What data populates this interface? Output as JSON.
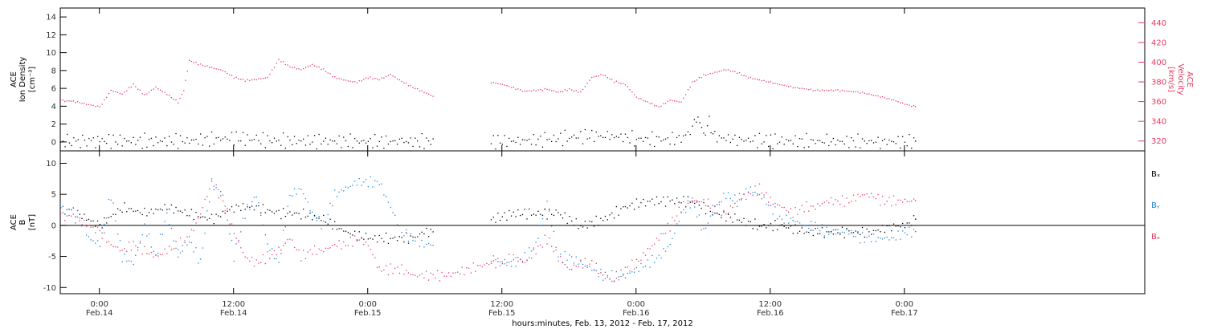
{
  "colors": {
    "black": "#000000",
    "pink": "#e8395f",
    "blue": "#1a86e0"
  },
  "time_axis": {
    "xlabel": "hours:minutes, Feb. 13, 2012 - Feb. 17, 2012",
    "range_hours": [
      -3.5,
      93.5
    ],
    "ticks": [
      {
        "hours": 0,
        "time": "0:00",
        "date": "Feb.14"
      },
      {
        "hours": 12,
        "time": "12:00",
        "date": "Feb.14"
      },
      {
        "hours": 24,
        "time": "0:00",
        "date": "Feb.15"
      },
      {
        "hours": 36,
        "time": "12:00",
        "date": "Feb.15"
      },
      {
        "hours": 48,
        "time": "0:00",
        "date": "Feb.16"
      },
      {
        "hours": 60,
        "time": "12:00",
        "date": "Feb.16"
      },
      {
        "hours": 72,
        "time": "0:00",
        "date": "Feb.17"
      }
    ]
  },
  "chart_data": [
    {
      "type": "scatter",
      "panel": "top",
      "y_left": {
        "label_lines": [
          "ACE",
          "Ion Density",
          "[cm⁻³]"
        ],
        "range": [
          -1,
          15
        ],
        "ticks": [
          0,
          2,
          4,
          6,
          8,
          10,
          12,
          14
        ]
      },
      "y_right": {
        "label_lines": [
          "ACE",
          "Velocity",
          "[km/s]"
        ],
        "range": [
          310,
          455
        ],
        "ticks": [
          320,
          340,
          360,
          380,
          400,
          420,
          440
        ]
      },
      "series": [
        {
          "axis": "left",
          "color": "#000000",
          "x": [
            -3.5,
            0,
            4,
            8,
            12,
            14,
            16,
            20,
            24,
            27,
            30,
            31,
            35,
            38,
            40,
            42,
            45,
            46,
            48,
            50,
            52,
            53,
            53.5,
            54,
            54.5,
            55,
            57,
            60,
            65,
            70,
            73
          ],
          "y": [
            0.1,
            0.2,
            0.15,
            0.2,
            0.5,
            0.3,
            0.2,
            0.15,
            0.1,
            0.1,
            0.1,
            null,
            0.1,
            0.2,
            0.3,
            0.6,
            0.8,
            0.7,
            0.4,
            0.3,
            0.4,
            1.5,
            2.8,
            1.0,
            2.5,
            0.6,
            0.3,
            0.2,
            0.1,
            0.1,
            0.1
          ]
        },
        {
          "axis": "right",
          "color": "#e8395f",
          "x": [
            -3.5,
            -2,
            0,
            1,
            2,
            3,
            4,
            5,
            6,
            7,
            7.5,
            8,
            9,
            10,
            11,
            12,
            13,
            14,
            15,
            16,
            17,
            18,
            19,
            20,
            21,
            22,
            23,
            24,
            25,
            26,
            27,
            28,
            29,
            30,
            31,
            35,
            36,
            38,
            40,
            41,
            42,
            43,
            44,
            45,
            46,
            47,
            48,
            49,
            50,
            51,
            52,
            53,
            54,
            55,
            56,
            57,
            58,
            60,
            62,
            64,
            66,
            68,
            70,
            71,
            72,
            73
          ],
          "y": [
            362,
            360,
            355,
            372,
            368,
            378,
            367,
            375,
            368,
            360,
            372,
            402,
            398,
            395,
            392,
            385,
            382,
            383,
            385,
            403,
            396,
            393,
            398,
            393,
            385,
            382,
            380,
            385,
            383,
            388,
            381,
            375,
            370,
            365,
            null,
            380,
            378,
            371,
            373,
            370,
            373,
            370,
            385,
            388,
            381,
            378,
            365,
            360,
            355,
            362,
            360,
            380,
            387,
            390,
            393,
            390,
            385,
            380,
            375,
            372,
            372,
            370,
            365,
            362,
            358,
            355
          ]
        }
      ]
    },
    {
      "type": "scatter",
      "panel": "bottom",
      "y_left": {
        "label_lines": [
          "ACE",
          "B",
          "[nT]"
        ],
        "range": [
          -11,
          12
        ],
        "ticks": [
          -10,
          -5,
          0,
          5,
          10
        ]
      },
      "reference_line": 0,
      "series": [
        {
          "name": "Bₓ",
          "color": "#000000",
          "x": [
            -3.5,
            -2,
            0,
            2,
            4,
            6,
            8,
            10,
            12,
            14,
            16,
            18,
            20,
            21,
            22,
            24,
            26,
            28,
            29,
            30,
            31,
            35,
            37,
            39,
            41,
            43,
            45,
            47,
            49,
            51,
            53,
            55,
            57,
            59,
            61,
            63,
            65,
            67,
            69,
            71,
            72,
            73
          ],
          "y": [
            3,
            2,
            0,
            3,
            2,
            3,
            2,
            1,
            3,
            3,
            2,
            2,
            1,
            0,
            -1,
            -2,
            -2,
            -2,
            -1,
            -1,
            null,
            1,
            2,
            2,
            2,
            0,
            1,
            3,
            4,
            4,
            4,
            2,
            1,
            0,
            0,
            -1,
            -1,
            -1,
            -1,
            0,
            0,
            1
          ]
        },
        {
          "name": "Bᵧ",
          "color": "#1a86e0",
          "x": [
            -3.5,
            -2,
            -1,
            0,
            1,
            2,
            3,
            4,
            5,
            6,
            7,
            8,
            9,
            10,
            11,
            12,
            13,
            14,
            15,
            16,
            17,
            18,
            19,
            20,
            21,
            22,
            23,
            24,
            25,
            26,
            27,
            28,
            29,
            30,
            31,
            35,
            36,
            37,
            38,
            39,
            40,
            41,
            42,
            43,
            44,
            45,
            46,
            47,
            48,
            49,
            50,
            51,
            52,
            53,
            54,
            55,
            56,
            57,
            58,
            59,
            60,
            61,
            62,
            63,
            64,
            65,
            66,
            67,
            68,
            69,
            70,
            71,
            72,
            73
          ],
          "y": [
            3,
            2,
            -2,
            -3,
            5,
            -5,
            -6,
            0,
            -5,
            2,
            -5,
            -2,
            -6,
            7,
            5,
            -5,
            2,
            5,
            -3,
            -6,
            5,
            6,
            2,
            0,
            5,
            6,
            7,
            7,
            7,
            3,
            -1,
            -2,
            -3,
            -3,
            null,
            -5,
            -6,
            -6,
            -5,
            -3,
            4,
            -5,
            -5,
            -6,
            -7,
            -8,
            -8,
            -8,
            -7,
            -6,
            -5,
            -3,
            2,
            4,
            -1,
            3,
            5,
            4,
            6,
            5,
            3,
            1,
            1,
            0,
            0,
            -1,
            -1,
            -1,
            -2,
            -2,
            -2,
            -2,
            -1,
            -1
          ]
        },
        {
          "name": "Bₔ",
          "color": "#e8395f",
          "x": [
            -3.5,
            -2,
            0,
            1,
            2,
            3,
            4,
            5,
            6,
            7,
            8,
            9,
            10,
            11,
            12,
            13,
            14,
            15,
            16,
            17,
            18,
            19,
            20,
            21,
            22,
            23,
            24,
            25,
            26,
            27,
            28,
            29,
            30,
            31,
            35,
            36,
            37,
            38,
            39,
            40,
            41,
            42,
            43,
            44,
            45,
            46,
            47,
            48,
            49,
            50,
            51,
            52,
            53,
            54,
            55,
            56,
            57,
            58,
            59,
            60,
            61,
            62,
            63,
            64,
            65,
            66,
            67,
            68,
            69,
            70,
            71,
            72,
            73
          ],
          "y": [
            2,
            1,
            -1,
            -3,
            -4,
            -3,
            -4,
            -5,
            -4,
            -3,
            -2,
            2,
            7,
            4,
            -1,
            -5,
            -6,
            -5,
            -4,
            -2,
            -5,
            -4,
            -4,
            -3,
            -3,
            -2,
            -3,
            -7,
            -7,
            -7,
            -8,
            -8,
            -8,
            -8,
            -6,
            -6,
            -5,
            -6,
            -4,
            -2,
            -5,
            -7,
            -6,
            -6,
            -8,
            -9,
            -7,
            -6,
            -4,
            -2,
            0,
            3,
            4,
            4,
            3,
            2,
            4,
            5,
            6,
            4,
            3,
            2,
            3,
            3,
            4,
            4,
            4,
            5,
            5,
            4,
            4,
            4,
            4
          ]
        }
      ]
    }
  ]
}
